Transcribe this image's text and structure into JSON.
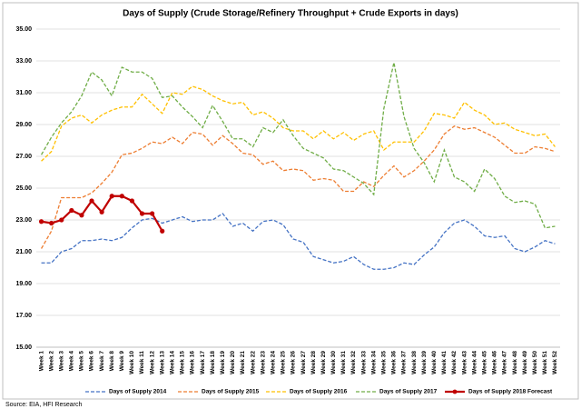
{
  "chart_data": {
    "type": "line",
    "title": "Days of Supply (Crude Storage/Refinery Throughput + Crude Exports in days)",
    "source": "Source: EIA, HFI Research",
    "categories": [
      "Week 1",
      "Week 2",
      "Week 3",
      "Week 4",
      "Week 5",
      "Week 6",
      "Week 7",
      "Week 8",
      "Week 9",
      "Week 10",
      "Week 11",
      "Week 12",
      "Week 13",
      "Week 14",
      "Week 15",
      "Week 16",
      "Week 17",
      "Week 18",
      "Week 19",
      "Week 20",
      "Week 21",
      "Week 22",
      "Week 23",
      "Week 24",
      "Week 25",
      "Week 26",
      "Week 27",
      "Week 28",
      "Week 29",
      "Week 30",
      "Week 31",
      "Week 32",
      "Week 33",
      "Week 34",
      "Week 35",
      "Week 36",
      "Week 37",
      "Week 38",
      "Week 39",
      "Week 40",
      "Week 41",
      "Week 42",
      "Week 43",
      "Week 44",
      "Week 45",
      "Week 46",
      "Week 47",
      "Week 48",
      "Week 49",
      "Week 50",
      "Week 51",
      "Week 52"
    ],
    "series": [
      {
        "name": "Days of Supply 2014",
        "color": "#4472c4",
        "dashed": true,
        "values": [
          20.3,
          20.3,
          21.0,
          21.2,
          21.7,
          21.7,
          21.8,
          21.7,
          21.9,
          22.5,
          23.0,
          23.1,
          22.8,
          23.0,
          23.2,
          22.9,
          23.0,
          23.0,
          23.4,
          22.6,
          22.8,
          22.3,
          22.9,
          23.0,
          22.7,
          21.8,
          21.6,
          20.7,
          20.5,
          20.3,
          20.4,
          20.7,
          20.2,
          19.9,
          19.9,
          20.0,
          20.3,
          20.2,
          20.8,
          21.3,
          22.2,
          22.8,
          23.0,
          22.6,
          22.0,
          21.9,
          22.0,
          21.2,
          21.0,
          21.3,
          21.7,
          21.5
        ]
      },
      {
        "name": "Days of Supply 2015",
        "color": "#ed7d31",
        "dashed": true,
        "values": [
          21.2,
          22.3,
          24.4,
          24.4,
          24.4,
          24.7,
          25.3,
          26.0,
          27.1,
          27.2,
          27.5,
          27.9,
          27.8,
          28.2,
          27.8,
          28.5,
          28.4,
          27.7,
          28.3,
          27.8,
          27.2,
          27.1,
          26.5,
          26.7,
          26.1,
          26.2,
          26.1,
          25.5,
          25.6,
          25.5,
          24.8,
          24.8,
          25.4,
          25.1,
          25.8,
          26.4,
          25.7,
          26.1,
          26.7,
          27.4,
          28.4,
          28.9,
          28.7,
          28.8,
          28.5,
          28.2,
          27.7,
          27.2,
          27.2,
          27.6,
          27.5,
          27.3
        ]
      },
      {
        "name": "Days of Supply 2016",
        "color": "#ffc000",
        "dashed": true,
        "values": [
          26.7,
          27.3,
          28.9,
          29.4,
          29.6,
          29.1,
          29.6,
          29.9,
          30.1,
          30.1,
          30.9,
          30.3,
          29.7,
          31.0,
          30.9,
          31.4,
          31.2,
          30.8,
          30.5,
          30.3,
          30.4,
          29.6,
          29.8,
          29.4,
          28.8,
          28.6,
          28.6,
          28.1,
          28.6,
          28.1,
          28.5,
          28.0,
          28.4,
          28.6,
          27.4,
          27.9,
          27.9,
          27.9,
          28.6,
          29.7,
          29.6,
          29.4,
          30.4,
          29.9,
          29.6,
          29.0,
          29.1,
          28.7,
          28.5,
          28.3,
          28.4,
          27.6
        ]
      },
      {
        "name": "Days of Supply 2017",
        "color": "#70ad47",
        "dashed": true,
        "values": [
          27.1,
          28.2,
          29.1,
          29.8,
          30.8,
          32.3,
          31.8,
          30.8,
          32.6,
          32.3,
          32.3,
          31.9,
          30.7,
          30.8,
          30.1,
          29.5,
          28.8,
          30.2,
          29.2,
          28.1,
          28.1,
          27.6,
          28.8,
          28.5,
          29.3,
          28.3,
          27.5,
          27.2,
          26.9,
          26.2,
          26.1,
          25.7,
          25.3,
          24.6,
          30.0,
          32.9,
          29.5,
          27.5,
          26.6,
          25.4,
          27.4,
          25.7,
          25.4,
          24.8,
          26.2,
          25.6,
          24.5,
          24.1,
          24.2,
          24.0,
          22.5,
          22.6
        ]
      },
      {
        "name": "Days of Supply 2018 Forecast",
        "color": "#c00000",
        "dashed": false,
        "markers": true,
        "values": [
          22.9,
          22.8,
          23.0,
          23.6,
          23.3,
          24.2,
          23.5,
          24.5,
          24.5,
          24.2,
          23.4,
          23.4,
          22.3,
          null,
          null,
          null,
          null,
          null,
          null,
          null,
          null,
          null,
          null,
          null,
          null,
          null,
          null,
          null,
          null,
          null,
          null,
          null,
          null,
          null,
          null,
          null,
          null,
          null,
          null,
          null,
          null,
          null,
          null,
          null,
          null,
          null,
          null,
          null,
          null,
          null,
          null,
          null
        ]
      }
    ],
    "ylim": [
      15,
      35
    ],
    "yticks": [
      {
        "value": 15,
        "label": "15.00"
      },
      {
        "value": 17,
        "label": "17.00"
      },
      {
        "value": 19,
        "label": "19.00"
      },
      {
        "value": 21,
        "label": "21.00"
      },
      {
        "value": 23,
        "label": "23.00"
      },
      {
        "value": 25,
        "label": "25.00"
      },
      {
        "value": 27,
        "label": "27.00"
      },
      {
        "value": 29,
        "label": "29.00"
      },
      {
        "value": 31,
        "label": "31.00"
      },
      {
        "value": 33,
        "label": "33.00"
      },
      {
        "value": 35,
        "label": "35.00"
      }
    ],
    "grid": true,
    "legend": "bottom"
  }
}
